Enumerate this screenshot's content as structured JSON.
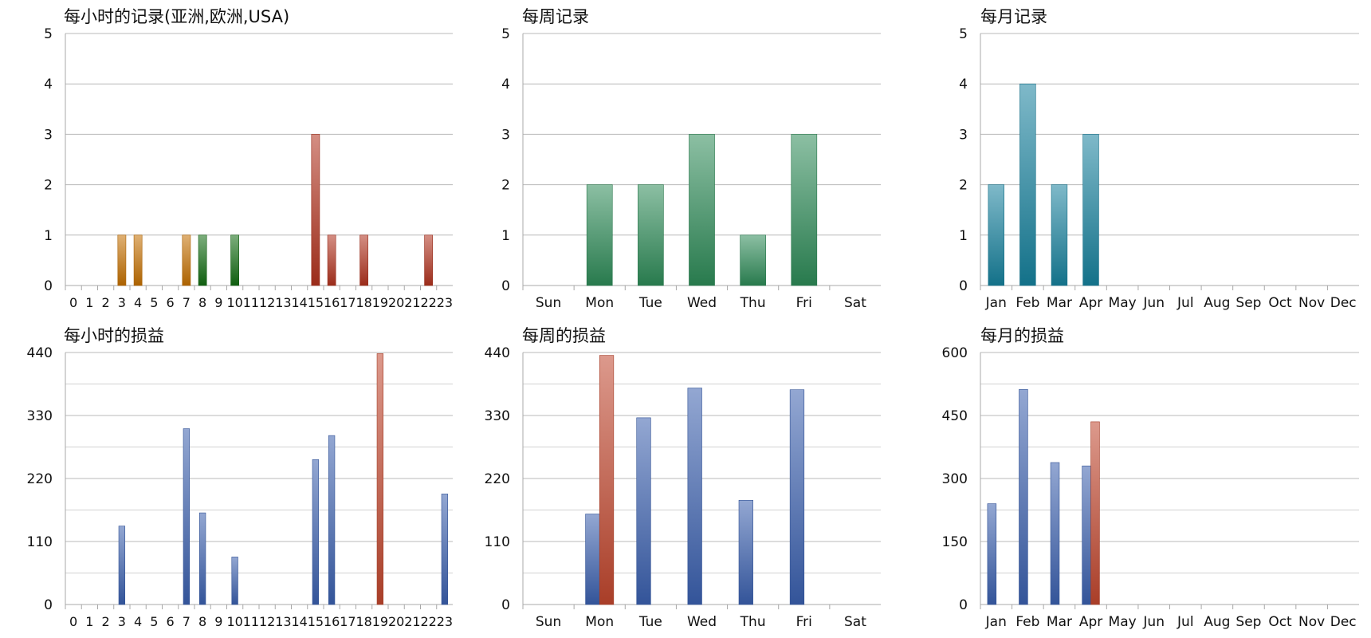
{
  "chart_data": [
    {
      "type": "bar",
      "title": "每小时的记录(亚洲,欧洲,USA)",
      "categories": [
        "0",
        "1",
        "2",
        "3",
        "4",
        "5",
        "6",
        "7",
        "8",
        "9",
        "10",
        "11",
        "12",
        "13",
        "14",
        "15",
        "16",
        "17",
        "18",
        "19",
        "20",
        "21",
        "22",
        "23"
      ],
      "values": [
        0,
        0,
        0,
        1,
        1,
        0,
        0,
        1,
        1,
        0,
        1,
        0,
        0,
        0,
        0,
        3,
        1,
        0,
        1,
        0,
        0,
        0,
        1,
        0
      ],
      "bar_colors": [
        "#c46f00",
        "#c46f00",
        "#c46f00",
        "#c46f00",
        "#c46f00",
        "#c46f00",
        "#c46f00",
        "#c46f00",
        "#116b11",
        "#116b11",
        "#116b11",
        "#116b11",
        "#116b11",
        "#116b11",
        "#116b11",
        "#b0321e",
        "#b0321e",
        "#b0321e",
        "#b0321e",
        "#b0321e",
        "#b0321e",
        "#b0321e",
        "#b0321e",
        "#b0321e"
      ],
      "ylim": [
        0,
        5
      ],
      "yticks": [
        0,
        1,
        2,
        3,
        4,
        5
      ],
      "grid": true
    },
    {
      "type": "bar",
      "title": "每周记录",
      "categories": [
        "Sun",
        "Mon",
        "Tue",
        "Wed",
        "Thu",
        "Fri",
        "Sat"
      ],
      "values": [
        0,
        2,
        2,
        3,
        1,
        3,
        0
      ],
      "color": "#2e8b57",
      "ylim": [
        0,
        5
      ],
      "yticks": [
        0,
        1,
        2,
        3,
        4,
        5
      ],
      "grid": true
    },
    {
      "type": "bar",
      "title": "每月记录",
      "categories": [
        "Jan",
        "Feb",
        "Mar",
        "Apr",
        "May",
        "Jun",
        "Jul",
        "Aug",
        "Sep",
        "Oct",
        "Nov",
        "Dec"
      ],
      "values": [
        2,
        4,
        2,
        3,
        0,
        0,
        0,
        0,
        0,
        0,
        0,
        0
      ],
      "color": "#16809c",
      "ylim": [
        0,
        5
      ],
      "yticks": [
        0,
        1,
        2,
        3,
        4,
        5
      ],
      "grid": true
    },
    {
      "type": "bar",
      "title": "每小时的损益",
      "categories": [
        "0",
        "1",
        "2",
        "3",
        "4",
        "5",
        "6",
        "7",
        "8",
        "9",
        "10",
        "11",
        "12",
        "13",
        "14",
        "15",
        "16",
        "17",
        "18",
        "19",
        "20",
        "21",
        "22",
        "23"
      ],
      "series": [
        {
          "values": [
            0,
            0,
            0,
            137,
            0,
            0,
            0,
            307,
            160,
            0,
            83,
            0,
            0,
            0,
            0,
            253,
            295,
            0,
            0,
            0,
            0,
            0,
            0,
            193
          ],
          "color": "#3a5fae"
        },
        {
          "values": [
            0,
            0,
            0,
            0,
            0,
            0,
            0,
            0,
            0,
            0,
            0,
            0,
            0,
            0,
            0,
            0,
            0,
            0,
            0,
            438,
            0,
            0,
            0,
            0
          ],
          "color": "#c0462d"
        }
      ],
      "ylim": [
        0,
        440
      ],
      "yticks": [
        0,
        110,
        220,
        330,
        440
      ],
      "grid": true
    },
    {
      "type": "bar",
      "title": "每周的损益",
      "categories": [
        "Sun",
        "Mon",
        "Tue",
        "Wed",
        "Thu",
        "Fri",
        "Sat"
      ],
      "series": [
        {
          "values": [
            0,
            158,
            326,
            378,
            182,
            375,
            0
          ],
          "color": "#3a5fae"
        },
        {
          "values": [
            0,
            435,
            0,
            0,
            0,
            0,
            0
          ],
          "color": "#c0462d"
        }
      ],
      "ylim": [
        0,
        440
      ],
      "yticks": [
        0,
        110,
        220,
        330,
        440
      ],
      "grid": true
    },
    {
      "type": "bar",
      "title": "每月的损益",
      "categories": [
        "Jan",
        "Feb",
        "Mar",
        "Apr",
        "May",
        "Jun",
        "Jul",
        "Aug",
        "Sep",
        "Oct",
        "Nov",
        "Dec"
      ],
      "series": [
        {
          "values": [
            240,
            512,
            338,
            330,
            0,
            0,
            0,
            0,
            0,
            0,
            0,
            0
          ],
          "color": "#3a5fae"
        },
        {
          "values": [
            0,
            0,
            0,
            435,
            0,
            0,
            0,
            0,
            0,
            0,
            0,
            0
          ],
          "color": "#c0462d"
        }
      ],
      "ylim": [
        0,
        600
      ],
      "yticks": [
        0,
        150,
        300,
        450,
        600
      ],
      "grid": true
    }
  ]
}
